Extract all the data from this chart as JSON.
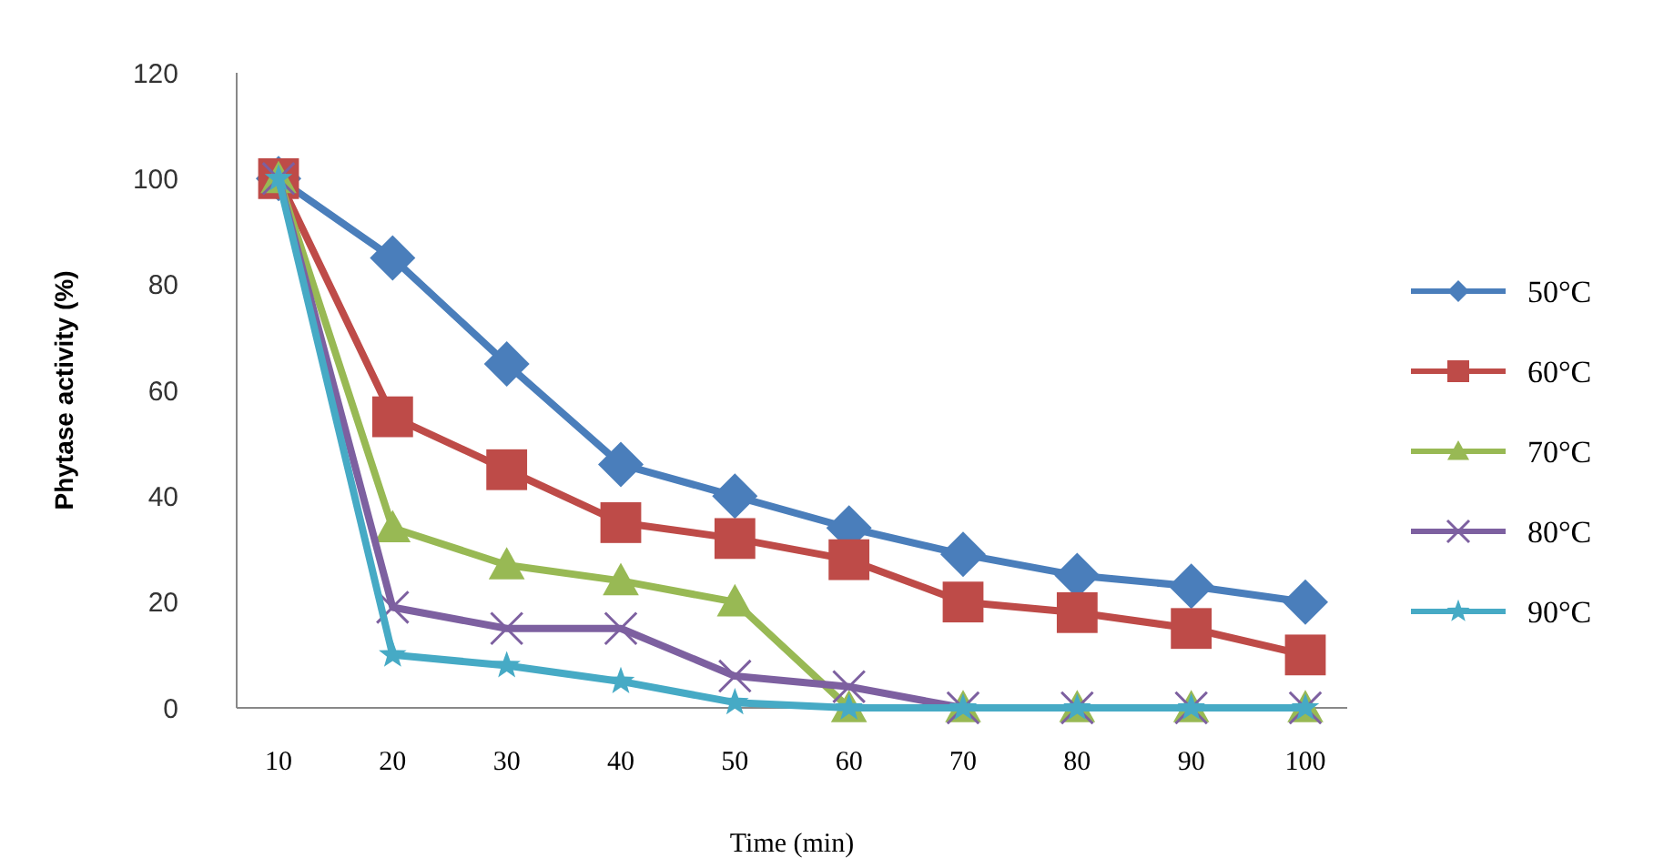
{
  "chart_data": {
    "type": "line",
    "xlabel": "Time (min)",
    "ylabel": "Phytase activity (%)",
    "categories": [
      "10",
      "20",
      "30",
      "40",
      "50",
      "60",
      "70",
      "80",
      "90",
      "100"
    ],
    "ylim": [
      0,
      120
    ],
    "yticks": [
      0,
      20,
      40,
      60,
      80,
      100,
      120
    ],
    "grid": false,
    "legend": "right",
    "series": [
      {
        "name": "50°C",
        "color": "#4a7ebb",
        "marker": "diamond",
        "values": [
          100,
          85,
          65,
          46,
          40,
          34,
          29,
          25,
          23,
          20
        ]
      },
      {
        "name": "60°C",
        "color": "#be4b48",
        "marker": "square",
        "values": [
          100,
          55,
          45,
          35,
          32,
          28,
          20,
          18,
          15,
          10
        ]
      },
      {
        "name": "70°C",
        "color": "#98b954",
        "marker": "triangle",
        "values": [
          100,
          34,
          27,
          24,
          20,
          0,
          0,
          0,
          0,
          0
        ]
      },
      {
        "name": "80°C",
        "color": "#7d60a0",
        "marker": "cross",
        "values": [
          100,
          19,
          15,
          15,
          6,
          4,
          0,
          0,
          0,
          0
        ]
      },
      {
        "name": "90°C",
        "color": "#46aac5",
        "marker": "star",
        "values": [
          100,
          10,
          8,
          5,
          1,
          0,
          0,
          0,
          0,
          0
        ]
      }
    ]
  }
}
